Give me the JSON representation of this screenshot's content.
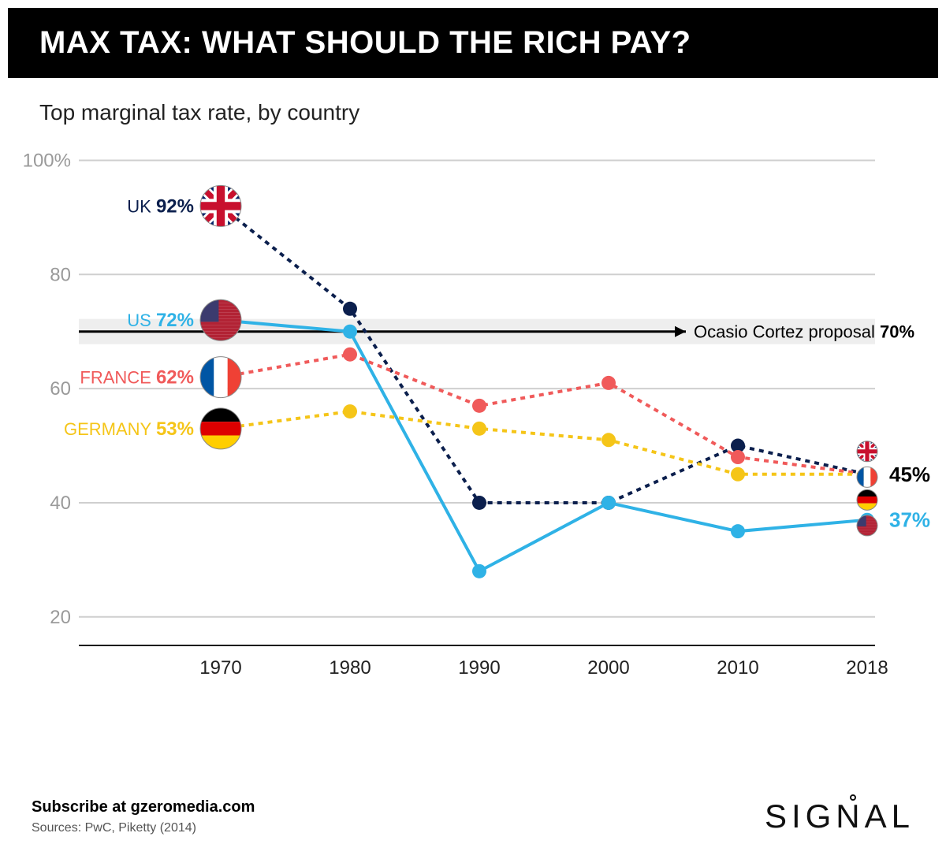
{
  "header": {
    "title": "MAX TAX: WHAT SHOULD THE RICH PAY?"
  },
  "subtitle": "Top marginal tax rate, by country",
  "chart": {
    "type": "line",
    "background_color": "#ffffff",
    "x_categories": [
      "1970",
      "1980",
      "1990",
      "2000",
      "2010",
      "2018"
    ],
    "ylim": [
      15,
      102
    ],
    "y_ticks": [
      20,
      40,
      60,
      80,
      100
    ],
    "y_tick_labels": [
      "20",
      "40",
      "60",
      "80",
      "100%"
    ],
    "grid_color": "#cfcfcf",
    "axis_color": "#1a1a1a",
    "axis_label_color": "#222222",
    "tick_label_color": "#9a9a9a",
    "tick_fontsize": 24,
    "marker_radius": 9,
    "line_width": 4,
    "annotation": {
      "label": "Ocasio Cortez proposal",
      "value_label": "70%",
      "y": 70,
      "band_fill": "#eeeeee",
      "line_color": "#000000",
      "line_width": 3,
      "text_color": "#000000",
      "fontsize": 22
    },
    "series": [
      {
        "id": "uk",
        "name": "UK",
        "start_label": "92%",
        "color": "#0b1f4d",
        "dash": "6,6",
        "style": "dashed",
        "values": [
          92,
          74,
          40,
          40,
          50,
          45
        ],
        "flag": "uk"
      },
      {
        "id": "us",
        "name": "US",
        "start_label": "72%",
        "color": "#2fb2e6",
        "dash": "",
        "style": "solid",
        "values": [
          72,
          70,
          28,
          40,
          35,
          37
        ],
        "flag": "us"
      },
      {
        "id": "france",
        "name": "FRANCE",
        "start_label": "62%",
        "color": "#f05a5a",
        "dash": "6,6",
        "style": "dashed",
        "values": [
          62,
          66,
          57,
          61,
          48,
          45
        ],
        "flag": "france"
      },
      {
        "id": "germany",
        "name": "GERMANY",
        "start_label": "53%",
        "color": "#f5c518",
        "dash": "6,6",
        "style": "dashed",
        "values": [
          53,
          56,
          53,
          51,
          45,
          45
        ],
        "flag": "germany"
      }
    ],
    "end_labels": [
      {
        "text": "45%",
        "y": 45,
        "color": "#000000"
      },
      {
        "text": "37%",
        "y": 37,
        "color": "#2fb2e6"
      }
    ],
    "end_flags": [
      {
        "flag": "uk",
        "y": 49
      },
      {
        "flag": "france",
        "y": 44.5
      },
      {
        "flag": "germany",
        "y": 40.5
      },
      {
        "flag": "us",
        "y": 36
      }
    ]
  },
  "footer": {
    "subscribe": "Subscribe at gzeromedia.com",
    "sources": "Sources: PwC, Piketty (2014)",
    "logo": "SIGNAL"
  }
}
